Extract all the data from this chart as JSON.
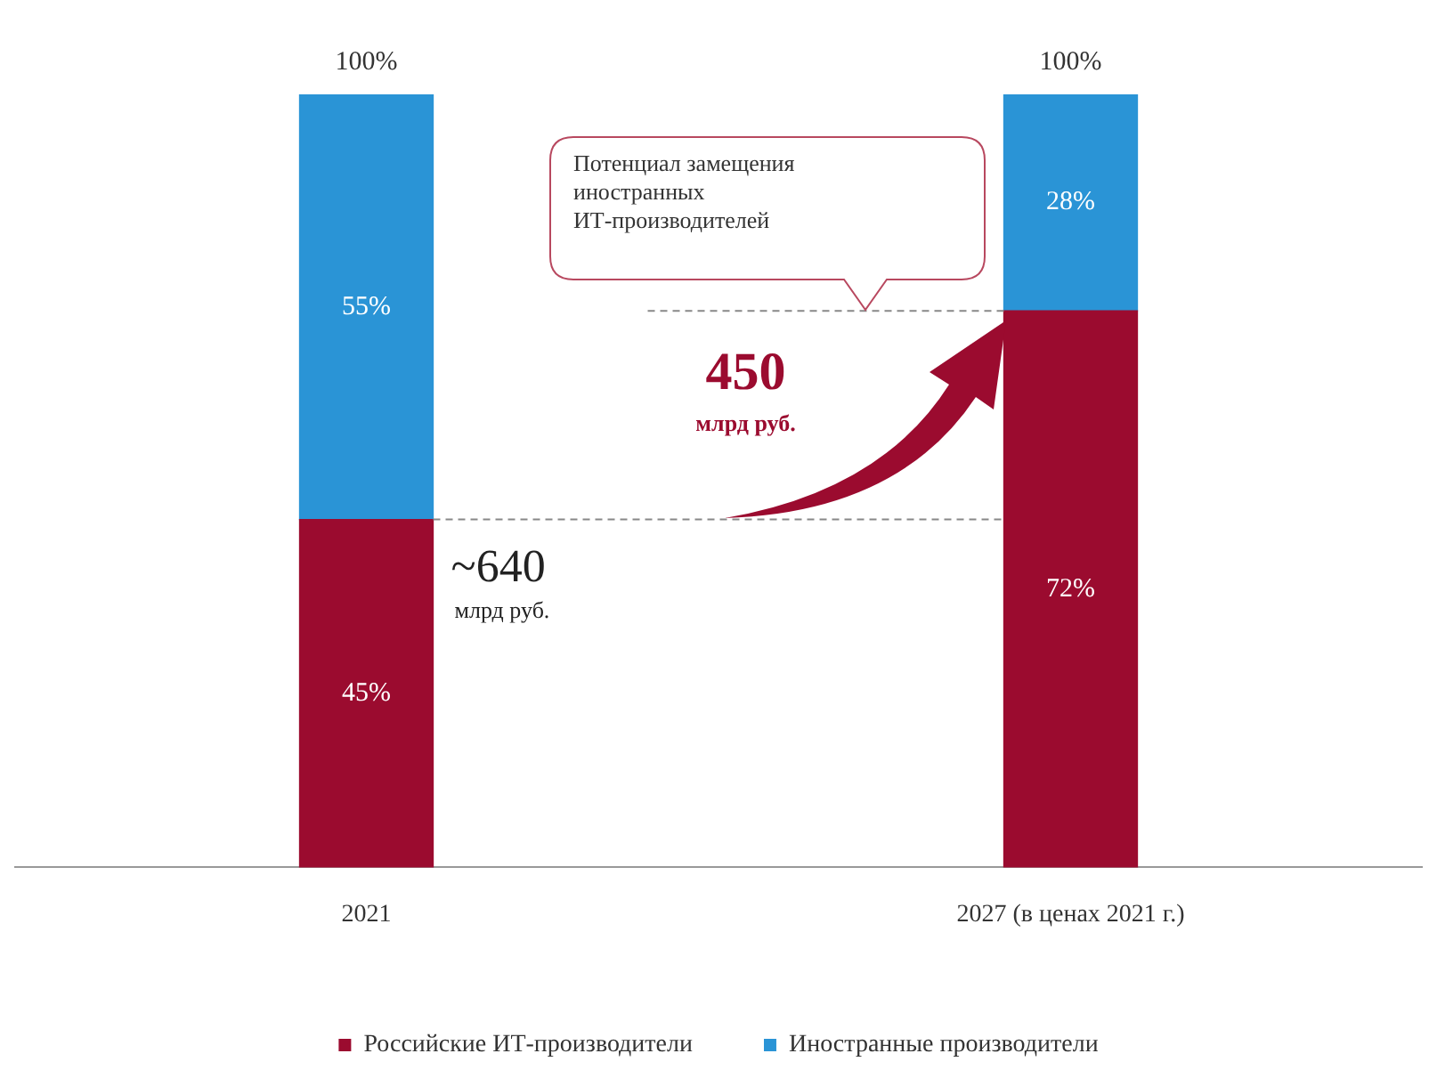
{
  "chart_data": {
    "type": "bar",
    "stacked": true,
    "categories": [
      "2021",
      "2027 (в ценах 2021 г.)"
    ],
    "series": [
      {
        "name": "Российские ИТ-производители",
        "color": "#9b0b2f",
        "values": [
          45,
          72
        ],
        "value_labels": [
          "45%",
          "72%"
        ]
      },
      {
        "name": "Иностранные производители",
        "color": "#2a94d6",
        "values": [
          55,
          28
        ],
        "value_labels": [
          "55%",
          "28%"
        ]
      }
    ],
    "totals": [
      "100%",
      "100%"
    ],
    "annotations": [
      {
        "text": "~640 млрд руб.",
        "x": "2021",
        "y": 45
      },
      "450 млрд руб.",
      "Потенциал замещения иностранных ИТ-производителей"
    ],
    "legend": "bottom",
    "grid": false
  }
}
